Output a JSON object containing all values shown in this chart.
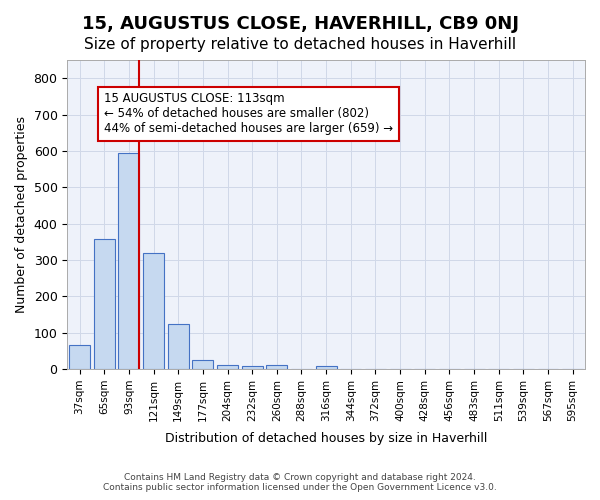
{
  "title": "15, AUGUSTUS CLOSE, HAVERHILL, CB9 0NJ",
  "subtitle": "Size of property relative to detached houses in Haverhill",
  "xlabel": "Distribution of detached houses by size in Haverhill",
  "ylabel": "Number of detached properties",
  "footer_line1": "Contains HM Land Registry data © Crown copyright and database right 2024.",
  "footer_line2": "Contains public sector information licensed under the Open Government Licence v3.0.",
  "bin_labels": [
    "37sqm",
    "65sqm",
    "93sqm",
    "121sqm",
    "149sqm",
    "177sqm",
    "204sqm",
    "232sqm",
    "260sqm",
    "288sqm",
    "316sqm",
    "344sqm",
    "372sqm",
    "400sqm",
    "428sqm",
    "456sqm",
    "483sqm",
    "511sqm",
    "539sqm",
    "567sqm",
    "595sqm"
  ],
  "bar_values": [
    65,
    358,
    595,
    320,
    125,
    25,
    10,
    7,
    10,
    0,
    8,
    0,
    0,
    0,
    0,
    0,
    0,
    0,
    0,
    0,
    0
  ],
  "bar_color": "#c6d9f0",
  "bar_edge_color": "#4472c4",
  "grid_color": "#d0d8e8",
  "bg_color": "#eef2fa",
  "property_bin_index": 2,
  "vline_color": "#cc0000",
  "annotation_text": "15 AUGUSTUS CLOSE: 113sqm\n← 54% of detached houses are smaller (802)\n44% of semi-detached houses are larger (659) →",
  "annotation_box_color": "#ffffff",
  "annotation_box_edge": "#cc0000",
  "ylim": [
    0,
    850
  ],
  "yticks": [
    0,
    100,
    200,
    300,
    400,
    500,
    600,
    700,
    800
  ],
  "title_fontsize": 13,
  "subtitle_fontsize": 11,
  "annotation_fontsize": 8.5
}
